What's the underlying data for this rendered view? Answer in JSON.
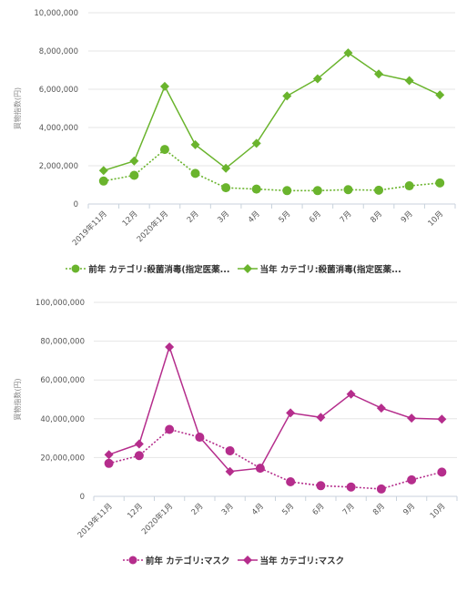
{
  "chart_data": [
    {
      "type": "line",
      "ylabel": "買物指数(円)",
      "categories": [
        "2019年11月",
        "12月",
        "2020年1月",
        "2月",
        "3月",
        "4月",
        "5月",
        "6月",
        "7月",
        "8月",
        "9月",
        "10月"
      ],
      "ylim": [
        0,
        10000000
      ],
      "yticks": [
        "0",
        "2,000,000",
        "4,000,000",
        "6,000,000",
        "8,000,000",
        "10,000,000"
      ],
      "color": "#6ab42d",
      "legend_position": "bottom",
      "series": [
        {
          "name": "前年 カテゴリ:殺菌消毒(指定医薬...",
          "style": "dotted",
          "marker": "circle",
          "values": [
            1200000,
            1500000,
            2850000,
            1600000,
            850000,
            780000,
            700000,
            700000,
            750000,
            720000,
            950000,
            1100000
          ]
        },
        {
          "name": "当年 カテゴリ:殺菌消毒(指定医薬...",
          "style": "solid",
          "marker": "diamond",
          "values": [
            1750000,
            2250000,
            6150000,
            3100000,
            1870000,
            3170000,
            5650000,
            6550000,
            7900000,
            6800000,
            6450000,
            5700000
          ]
        }
      ]
    },
    {
      "type": "line",
      "ylabel": "買物指数(円)",
      "categories": [
        "2019年11月",
        "12月",
        "2020年1月",
        "2月",
        "3月",
        "4月",
        "5月",
        "6月",
        "7月",
        "8月",
        "9月",
        "10月"
      ],
      "ylim": [
        0,
        100000000
      ],
      "yticks": [
        "0",
        "20,000,000",
        "40,000,000",
        "60,000,000",
        "80,000,000",
        "100,000,000"
      ],
      "color": "#b52d8c",
      "legend_position": "bottom",
      "series": [
        {
          "name": "前年 カテゴリ:マスク",
          "style": "dotted",
          "marker": "circle",
          "values": [
            17000000,
            21000000,
            34500000,
            30500000,
            23500000,
            14500000,
            7500000,
            5500000,
            4800000,
            3800000,
            8500000,
            12500000
          ]
        },
        {
          "name": "当年 カテゴリ:マスク",
          "style": "solid",
          "marker": "diamond",
          "values": [
            21500000,
            27000000,
            77000000,
            30500000,
            12800000,
            14500000,
            43000000,
            40700000,
            52700000,
            45500000,
            40300000,
            39800000
          ]
        }
      ]
    }
  ]
}
